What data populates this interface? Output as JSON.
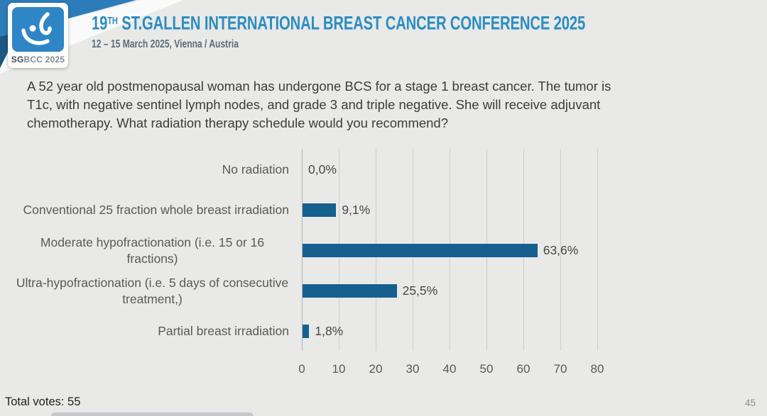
{
  "header": {
    "logo": {
      "bold": "SG",
      "rest": "BCC 2025"
    },
    "title_prefix": "19",
    "title_sup": "TH",
    "title_rest": " ST.GALLEN INTERNATIONAL BREAST CANCER CONFERENCE 2025",
    "subtitle": "12 – 15 March 2025, Vienna / Austria"
  },
  "question": {
    "lines": [
      "A 52 year old postmenopausal woman has undergone BCS for a stage 1 breast cancer.  The tumor is",
      "T1c, with negative sentinel lymph nodes, and grade 3 and triple negative.  She will receive adjuvant",
      "chemotherapy. What radiation therapy schedule would you recommend?"
    ]
  },
  "chart_data": {
    "type": "bar",
    "orientation": "horizontal",
    "categories": [
      "No radiation",
      "Conventional 25 fraction whole breast irradiation",
      "Moderate hypofractionation (i.e. 15 or 16 fractions)",
      "Ultra-hypofractionation (i.e. 5 days of consecutive treatment,)",
      "Partial breast irradiation"
    ],
    "values": [
      0.0,
      9.1,
      63.6,
      25.5,
      1.8
    ],
    "value_labels": [
      "0,0%",
      "9,1%",
      "63,6%",
      "25,5%",
      "1,8%"
    ],
    "xlim": [
      0,
      80
    ],
    "x_ticks": [
      "0",
      "10",
      "20",
      "30",
      "40",
      "50",
      "60",
      "70",
      "80"
    ],
    "grid": true,
    "legend": false,
    "bar_color": "#15608f"
  },
  "footer": {
    "total_votes": "Total votes: 55",
    "page_number": "45"
  },
  "colors": {
    "background": "#e9e9e7",
    "title_blue": "#2b8dc2",
    "bar_blue": "#15608f",
    "ribbon_blue": "#2b7cb9",
    "ribbon_dark": "#1c5881"
  }
}
